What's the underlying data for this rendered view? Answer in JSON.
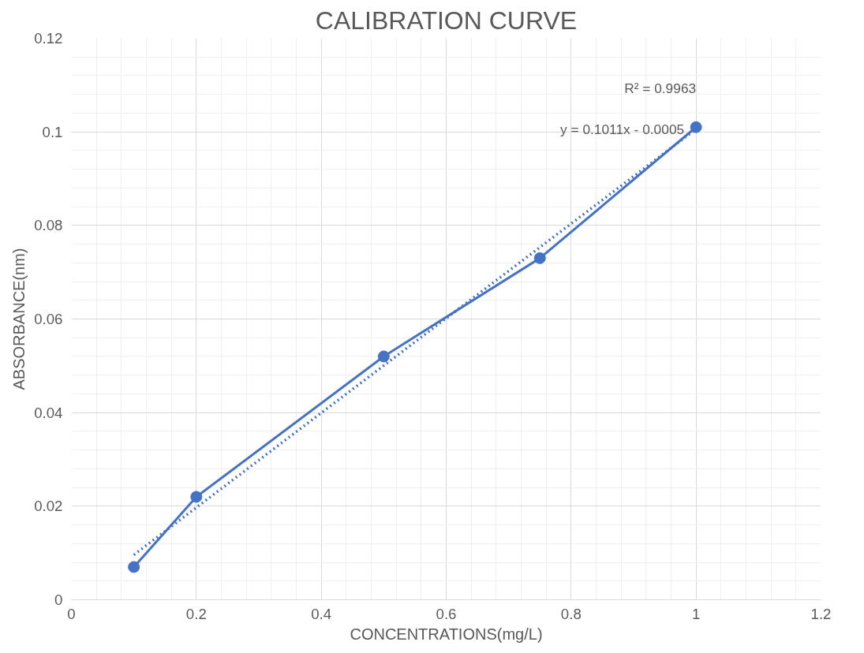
{
  "chart_data": {
    "type": "line",
    "title": "CALIBRATION CURVE",
    "xlabel": "CONCENTRATIONS(mg/L)",
    "ylabel": "ABSORBANCE(nm)",
    "x": [
      0.1,
      0.2,
      0.5,
      0.75,
      1
    ],
    "series": [
      {
        "color": "#4472c4",
        "values": [
          0.007,
          0.022,
          0.052,
          0.073,
          0.101
        ],
        "marker": "circle",
        "line_style": "solid"
      },
      {
        "color": "#4472c4",
        "x": [
          0.1,
          1
        ],
        "values": [
          0.0096,
          0.1006
        ],
        "marker": "none",
        "line_style": "dotted"
      }
    ],
    "xlim": [
      0,
      1.2
    ],
    "xticks": [
      0,
      0.2,
      0.4,
      0.6,
      0.8,
      1,
      1.2
    ],
    "ylim": [
      0,
      0.12
    ],
    "yticks": [
      0,
      0.02,
      0.04,
      0.06,
      0.08,
      0.1,
      0.12
    ],
    "grid": true,
    "annotations": [
      "y = 0.1011x - 0.0005",
      "R² = 0.9963"
    ]
  }
}
